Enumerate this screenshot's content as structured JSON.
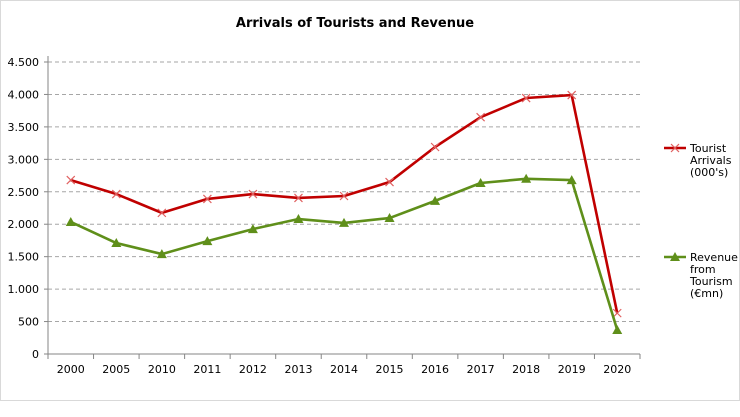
{
  "chart_data": {
    "type": "line",
    "title": "Arrivals of Tourists and Revenue",
    "xlabel": "",
    "ylabel": "",
    "categories": [
      "2000",
      "2005",
      "2010",
      "2011",
      "2012",
      "2013",
      "2014",
      "2015",
      "2016",
      "2017",
      "2018",
      "2019",
      "2020"
    ],
    "ylim": [
      0,
      4500
    ],
    "yticks": [
      0,
      500,
      1000,
      1500,
      2000,
      2500,
      3000,
      3500,
      4000,
      4500
    ],
    "ytick_labels": [
      "0",
      "500",
      "1.000",
      "1.500",
      "2.000",
      "2.500",
      "3.000",
      "3.500",
      "4.000",
      "4.500"
    ],
    "grid": true,
    "legend_position": "right",
    "series": [
      {
        "name": "Tourist Arrivals (000's)",
        "legend_lines": [
          "Tourist",
          "Arrivals",
          "(000's)"
        ],
        "color": "#c00000",
        "marker": "x",
        "values": [
          2680,
          2465,
          2175,
          2390,
          2465,
          2405,
          2435,
          2650,
          3190,
          3650,
          3945,
          3990,
          630
        ]
      },
      {
        "name": "Revenue from Tourism (€mn)",
        "legend_lines": [
          "Revenue",
          "from",
          "Tourism",
          "(€mn)"
        ],
        "color": "#5f8f1a",
        "marker": "triangle",
        "values": [
          2035,
          1710,
          1540,
          1740,
          1925,
          2080,
          2020,
          2095,
          2360,
          2635,
          2700,
          2680,
          370
        ]
      }
    ]
  }
}
